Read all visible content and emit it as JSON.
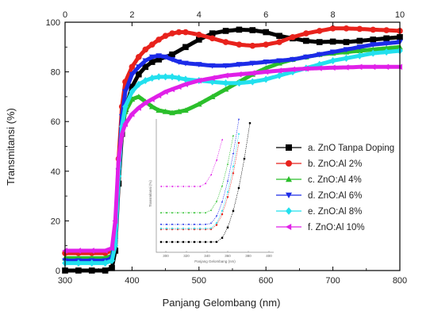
{
  "chart_data": {
    "type": "line",
    "xlabel": "Panjang Gelombang (nm)",
    "ylabel": "Transmitansi (%)",
    "xlim": [
      300,
      800
    ],
    "ylim": [
      0,
      100
    ],
    "x_ticks": [
      300,
      400,
      500,
      600,
      700,
      800
    ],
    "y_ticks": [
      0,
      20,
      40,
      60,
      80,
      100
    ],
    "top_axis_ticks": [
      0,
      2,
      4,
      6,
      8,
      10
    ],
    "top_axis_range": [
      0,
      10
    ],
    "grid": false,
    "legend_position": "right, inside plot",
    "series": [
      {
        "name": "a. ZnO Tanpa Doping",
        "color": "#000000",
        "marker": "square",
        "x": [
          300,
          320,
          340,
          360,
          370,
          375,
          380,
          385,
          390,
          400,
          410,
          420,
          430,
          440,
          460,
          480,
          500,
          520,
          540,
          560,
          580,
          600,
          620,
          640,
          660,
          680,
          700,
          720,
          740,
          760,
          780,
          800
        ],
        "y": [
          0,
          0,
          0,
          0,
          1,
          8,
          35,
          55,
          65,
          74,
          79,
          82,
          84,
          85,
          87,
          90,
          93,
          95.5,
          96.5,
          97,
          96.8,
          96,
          94.5,
          93.5,
          92.5,
          92,
          92.2,
          92,
          92.5,
          93,
          93.5,
          94
        ]
      },
      {
        "name": "b. ZnO:Al 2%",
        "color": "#e8221c",
        "marker": "circle",
        "x": [
          300,
          320,
          340,
          360,
          370,
          375,
          380,
          385,
          390,
          400,
          410,
          420,
          430,
          440,
          450,
          460,
          470,
          480,
          500,
          520,
          540,
          560,
          580,
          600,
          620,
          640,
          660,
          680,
          700,
          720,
          740,
          760,
          780,
          800
        ],
        "y": [
          7,
          7,
          7,
          7,
          8,
          15,
          45,
          66,
          76,
          82,
          86,
          89,
          91,
          93,
          94.5,
          95.5,
          96,
          96,
          95,
          93.5,
          92,
          91,
          90.5,
          91,
          92,
          94,
          95.5,
          96.5,
          97.5,
          97.5,
          97.3,
          97,
          96.8,
          96.5
        ]
      },
      {
        "name": "c. ZnO:Al 4%",
        "color": "#2bbf2b",
        "marker": "triangle-up",
        "x": [
          300,
          320,
          340,
          360,
          370,
          375,
          380,
          385,
          390,
          400,
          410,
          420,
          430,
          440,
          450,
          460,
          470,
          480,
          500,
          520,
          540,
          560,
          580,
          600,
          620,
          640,
          660,
          680,
          700,
          720,
          740,
          760,
          780,
          800
        ],
        "y": [
          5,
          5,
          5,
          5,
          6,
          15,
          42,
          58,
          64,
          69,
          70,
          68,
          66,
          64.5,
          64,
          63.5,
          64,
          64.5,
          67,
          70,
          73,
          76,
          79,
          81.5,
          83.5,
          85,
          86,
          87,
          87.5,
          88,
          88.5,
          89,
          89.5,
          90
        ]
      },
      {
        "name": "d. ZnO:Al 6%",
        "color": "#1c2be8",
        "marker": "triangle-down",
        "x": [
          300,
          320,
          340,
          360,
          370,
          375,
          380,
          385,
          390,
          400,
          410,
          420,
          430,
          440,
          450,
          460,
          470,
          480,
          500,
          520,
          540,
          560,
          580,
          600,
          620,
          640,
          660,
          680,
          700,
          720,
          740,
          760,
          780,
          800
        ],
        "y": [
          4,
          4,
          4,
          4,
          5,
          12,
          40,
          62,
          72,
          79,
          82,
          84.5,
          86,
          86.5,
          86,
          85,
          84,
          83.5,
          83,
          82.5,
          82.5,
          83,
          83.5,
          84,
          84.5,
          85,
          86,
          87,
          88,
          89,
          90,
          91,
          91.5,
          92
        ]
      },
      {
        "name": "e. ZnO:Al 8%",
        "color": "#22e0ee",
        "marker": "diamond",
        "x": [
          300,
          320,
          340,
          360,
          370,
          375,
          380,
          385,
          390,
          400,
          410,
          420,
          430,
          440,
          450,
          460,
          470,
          480,
          500,
          520,
          540,
          560,
          580,
          600,
          620,
          640,
          660,
          680,
          700,
          720,
          740,
          760,
          780,
          800
        ],
        "y": [
          3,
          3,
          3,
          3,
          4,
          10,
          38,
          58,
          66,
          72,
          75,
          76.5,
          77.5,
          78,
          78,
          78,
          77.5,
          77,
          76.5,
          76,
          75.5,
          75.5,
          76,
          77,
          78.5,
          80,
          81.5,
          83,
          84.5,
          85.5,
          86.5,
          87.5,
          88,
          88.5
        ]
      },
      {
        "name": "f. ZnO:Al 10%",
        "color": "#e020e8",
        "marker": "triangle-left",
        "x": [
          300,
          320,
          340,
          360,
          370,
          375,
          380,
          385,
          390,
          400,
          410,
          420,
          430,
          440,
          450,
          460,
          470,
          480,
          500,
          520,
          540,
          560,
          580,
          600,
          620,
          640,
          660,
          680,
          700,
          720,
          740,
          760,
          780,
          800
        ],
        "y": [
          8,
          8,
          8,
          8,
          9,
          20,
          45,
          55,
          59,
          63,
          65.5,
          67.5,
          69,
          70.5,
          72,
          73,
          74,
          75,
          76.5,
          77.5,
          78.5,
          79,
          79.5,
          80,
          80.5,
          81,
          81.3,
          81.5,
          81.7,
          81.8,
          82,
          82,
          82,
          82
        ]
      }
    ],
    "inset": {
      "xlabel": "Panjang Gelombang (nm)",
      "ylabel": "Transmitansi (%)",
      "x_tick_labels": [
        "300",
        "320",
        "340",
        "360",
        "380",
        "400"
      ]
    }
  }
}
